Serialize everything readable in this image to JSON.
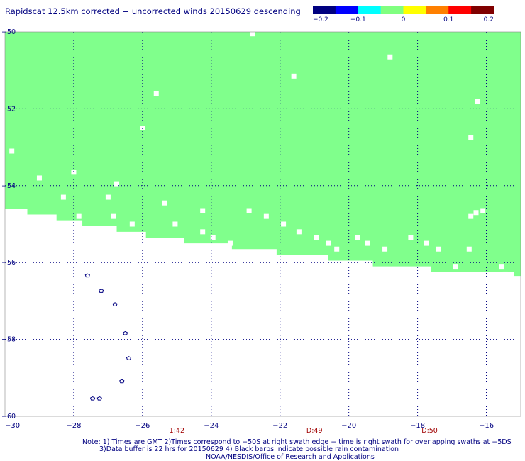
{
  "chart_data": {
    "type": "heatmap",
    "title": "Rapidscat 12.5km corrected − uncorrected winds 20150629 descending",
    "colorbar": {
      "ticks": [
        "−0.2",
        "−0.1",
        "0",
        "0.1",
        "0.2"
      ],
      "range": [
        -0.2,
        0.2
      ],
      "colors": [
        "#000080",
        "#0000ff",
        "#00ffff",
        "#80ff80",
        "#ffff00",
        "#ff8000",
        "#ff0000",
        "#800000"
      ]
    },
    "xaxis": {
      "range": [
        -30,
        -15
      ],
      "ticks": [
        "−30",
        "−28",
        "−26",
        "−24",
        "−22",
        "−20",
        "−18",
        "−16"
      ]
    },
    "yaxis": {
      "range": [
        -60,
        -50
      ],
      "ticks": [
        "−50",
        "−52",
        "−54",
        "−56",
        "−58",
        "−60"
      ]
    },
    "grid": true,
    "field_value": 0,
    "field_color": "#80ff8c",
    "swath_edge": [
      [
        -30,
        -54.6
      ],
      [
        -29.35,
        -54.6
      ],
      [
        -29.35,
        -54.75
      ],
      [
        -28.5,
        -54.75
      ],
      [
        -28.5,
        -54.9
      ],
      [
        -27.75,
        -54.9
      ],
      [
        -27.75,
        -55.05
      ],
      [
        -26.75,
        -55.05
      ],
      [
        -26.75,
        -55.2
      ],
      [
        -25.9,
        -55.2
      ],
      [
        -25.9,
        -55.35
      ],
      [
        -24.8,
        -55.35
      ],
      [
        -24.8,
        -55.5
      ],
      [
        -23.4,
        -55.5
      ],
      [
        -23.4,
        -55.65
      ],
      [
        -22.1,
        -55.65
      ],
      [
        -22.1,
        -55.8
      ],
      [
        -20.6,
        -55.8
      ],
      [
        -20.6,
        -55.95
      ],
      [
        -19.3,
        -55.95
      ],
      [
        -19.3,
        -56.1
      ],
      [
        -17.6,
        -56.1
      ],
      [
        -17.6,
        -56.25
      ],
      [
        -15.2,
        -56.25
      ],
      [
        -15.2,
        -56.35
      ],
      [
        -15,
        -56.35
      ]
    ],
    "missing_cells": [
      [
        -22.8,
        -50.05
      ],
      [
        -18.8,
        -50.65
      ],
      [
        -21.6,
        -51.15
      ],
      [
        -25.6,
        -51.6
      ],
      [
        -16.25,
        -51.8
      ],
      [
        -26.0,
        -52.5
      ],
      [
        -29.8,
        -53.1
      ],
      [
        -16.45,
        -52.75
      ],
      [
        -29.0,
        -53.8
      ],
      [
        -28.0,
        -53.65
      ],
      [
        -26.75,
        -53.95
      ],
      [
        -28.3,
        -54.3
      ],
      [
        -27.0,
        -54.3
      ],
      [
        -25.35,
        -54.45
      ],
      [
        -24.25,
        -54.65
      ],
      [
        -26.85,
        -54.8
      ],
      [
        -27.85,
        -54.8
      ],
      [
        -22.9,
        -54.65
      ],
      [
        -22.4,
        -54.8
      ],
      [
        -16.1,
        -54.65
      ],
      [
        -16.3,
        -54.7
      ],
      [
        -16.45,
        -54.8
      ],
      [
        -25.05,
        -55.0
      ],
      [
        -26.3,
        -55.0
      ],
      [
        -21.9,
        -55.0
      ],
      [
        -24.25,
        -55.2
      ],
      [
        -21.45,
        -55.2
      ],
      [
        -23.95,
        -55.35
      ],
      [
        -20.95,
        -55.35
      ],
      [
        -19.75,
        -55.35
      ],
      [
        -18.2,
        -55.35
      ],
      [
        -20.6,
        -55.5
      ],
      [
        -23.45,
        -55.5
      ],
      [
        -19.45,
        -55.5
      ],
      [
        -17.75,
        -55.5
      ],
      [
        -20.35,
        -55.65
      ],
      [
        -18.95,
        -55.65
      ],
      [
        -17.4,
        -55.65
      ],
      [
        -16.5,
        -55.65
      ],
      [
        -16.9,
        -56.1
      ],
      [
        -15.55,
        -56.1
      ],
      [
        -15.45,
        -56.3
      ]
    ],
    "rain_flags": [
      [
        -27.6,
        -56.35
      ],
      [
        -27.2,
        -56.75
      ],
      [
        -26.8,
        -57.1
      ],
      [
        -26.5,
        -57.85
      ],
      [
        -26.4,
        -58.5
      ],
      [
        -26.6,
        -59.1
      ],
      [
        -27.45,
        -59.55
      ],
      [
        -27.25,
        -59.55
      ]
    ],
    "time_labels": [
      {
        "x": -25.0,
        "text": "1:42"
      },
      {
        "x": -21.0,
        "text": "D:49"
      },
      {
        "x": -17.65,
        "text": "D:50"
      }
    ],
    "footnotes": [
      "Note: 1) Times are GMT 2)Times correspond to −50S at right swath edge − time is right swath for overlapping swaths at −5DS",
      "3)Data buffer is 22 hrs for 20150629 4) Black barbs indicate possible rain contamination",
      "NOAA/NESDIS/Office of Research and Applications"
    ]
  }
}
